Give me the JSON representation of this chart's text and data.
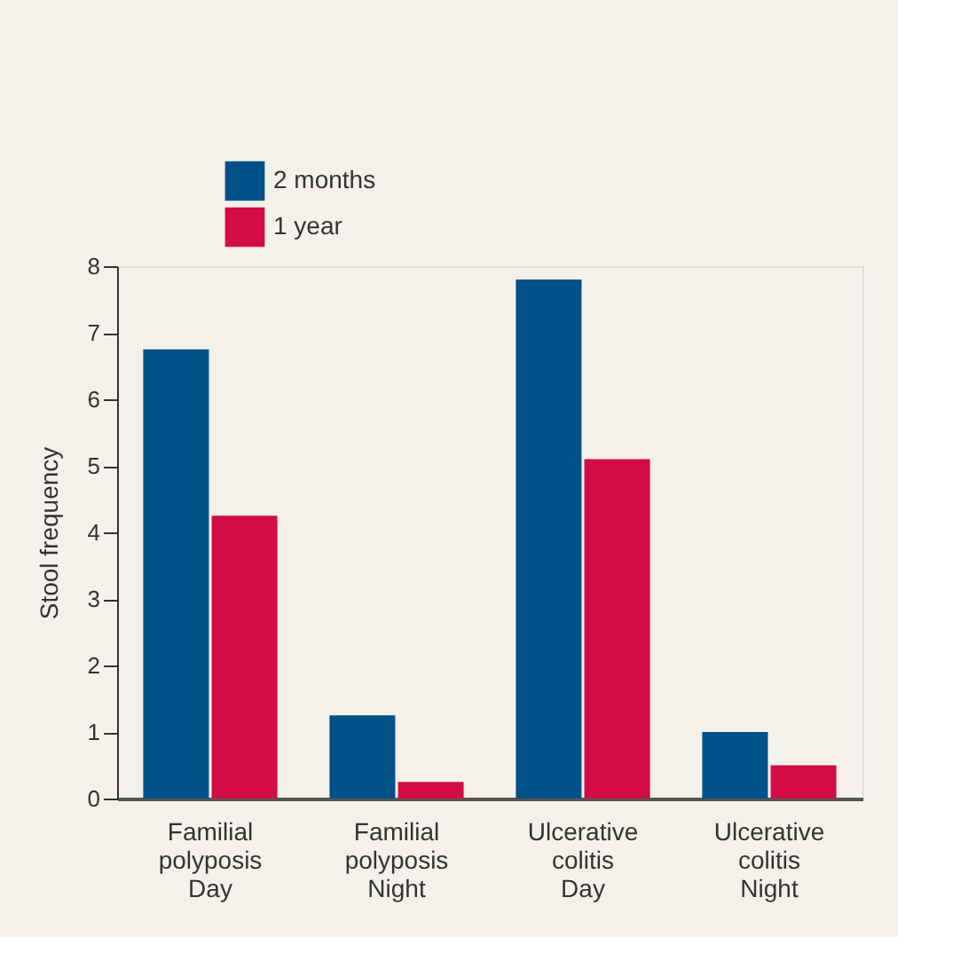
{
  "chart_data": {
    "type": "bar",
    "ylabel": "Stool frequency",
    "categories": [
      "Familial\npolyposis\nDay",
      "Familial\npolyposis\nNight",
      "Ulcerative\ncolitis\nDay",
      "Ulcerative\ncolitis\nNight"
    ],
    "series": [
      {
        "name": "2 months",
        "color": "#005188",
        "values": [
          6.75,
          1.25,
          7.8,
          1.0
        ]
      },
      {
        "name": "1 year",
        "color": "#d30c45",
        "values": [
          4.25,
          0.25,
          5.1,
          0.5
        ]
      }
    ],
    "ylim": [
      0,
      8
    ],
    "yticks": [
      0,
      1,
      2,
      3,
      4,
      5,
      6,
      7,
      8
    ],
    "grid": false,
    "legend": "top left"
  }
}
